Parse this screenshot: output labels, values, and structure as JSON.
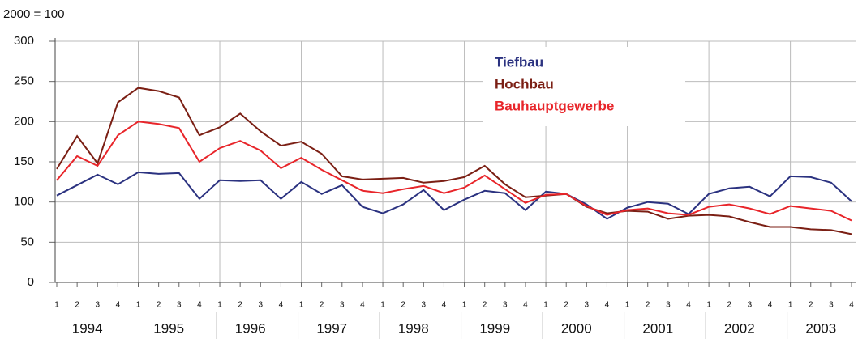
{
  "chart_data": {
    "type": "line",
    "ylabel": "2000 = 100",
    "categories": [
      "1",
      "2",
      "3",
      "4",
      "1",
      "2",
      "3",
      "4",
      "1",
      "2",
      "3",
      "4",
      "1",
      "2",
      "3",
      "4",
      "1",
      "2",
      "3",
      "4",
      "1",
      "2",
      "3",
      "4",
      "1",
      "2",
      "3",
      "4",
      "1",
      "2",
      "3",
      "4",
      "1",
      "2",
      "3",
      "4",
      "1",
      "2",
      "3",
      "4"
    ],
    "years": [
      "1994",
      "1995",
      "1996",
      "1997",
      "1998",
      "1999",
      "2000",
      "2001",
      "2002",
      "2003"
    ],
    "ylim": [
      0,
      300
    ],
    "yticks": [
      0,
      50,
      100,
      150,
      200,
      250,
      300
    ],
    "grid": true,
    "series": [
      {
        "name": "Tiefbau",
        "color": "#2b3280",
        "values": [
          108,
          121,
          134,
          122,
          137,
          135,
          136,
          104,
          127,
          126,
          127,
          104,
          125,
          110,
          121,
          94,
          86,
          97,
          115,
          90,
          103,
          114,
          111,
          90,
          113,
          110,
          97,
          79,
          93,
          100,
          98,
          85,
          110,
          117,
          119,
          107,
          132,
          131,
          124,
          101
        ]
      },
      {
        "name": "Hochbau",
        "color": "#7b1f14",
        "values": [
          141,
          182,
          148,
          224,
          242,
          238,
          230,
          183,
          193,
          210,
          188,
          170,
          175,
          160,
          132,
          128,
          129,
          130,
          124,
          126,
          131,
          145,
          122,
          106,
          108,
          110,
          94,
          86,
          89,
          88,
          79,
          83,
          84,
          82,
          75,
          69,
          69,
          66,
          65,
          60
        ]
      },
      {
        "name": "Bauhauptgewerbe",
        "color": "#e8252a",
        "values": [
          127,
          157,
          145,
          183,
          200,
          197,
          192,
          150,
          167,
          176,
          164,
          142,
          155,
          140,
          127,
          114,
          111,
          116,
          120,
          111,
          118,
          133,
          116,
          99,
          109,
          110,
          95,
          84,
          90,
          92,
          86,
          84,
          94,
          97,
          92,
          85,
          95,
          92,
          89,
          77
        ]
      }
    ]
  }
}
